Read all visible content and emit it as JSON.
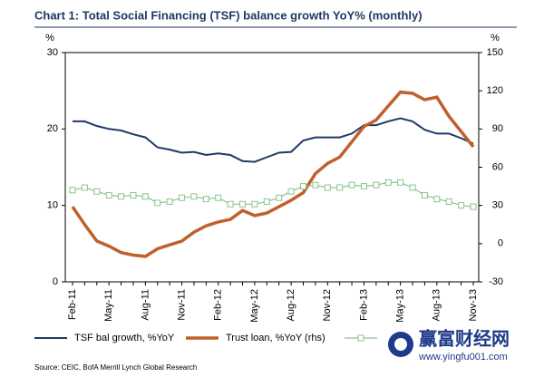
{
  "chart_data": {
    "type": "line",
    "title": "Chart 1: Total Social Financing (TSF) balance growth YoY% (monthly)",
    "y_label": "%",
    "y2_label": "%",
    "categories": [
      "Feb-11",
      null,
      null,
      "May-11",
      null,
      null,
      "Aug-11",
      null,
      null,
      "Nov-11",
      null,
      null,
      "Feb-12",
      null,
      null,
      "May-12",
      null,
      null,
      "Aug-12",
      null,
      null,
      "Nov-12",
      null,
      null,
      "Feb-13",
      null,
      null,
      "May-13",
      null,
      null,
      "Aug-13",
      null,
      null,
      "Nov-13"
    ],
    "ylim": [
      0,
      30
    ],
    "yticks": [
      0,
      10,
      20,
      30
    ],
    "y2lim": [
      -30,
      150
    ],
    "y2ticks": [
      -30,
      0,
      30,
      60,
      90,
      120,
      150
    ],
    "series": [
      {
        "name": "TSF bal growth, %YoY",
        "color": "#1f3a66",
        "marker": "none",
        "values": [
          21.0,
          21.0,
          20.4,
          20.0,
          19.8,
          19.3,
          18.9,
          17.6,
          17.3,
          16.9,
          17.0,
          16.6,
          16.8,
          16.6,
          15.8,
          15.7,
          16.3,
          16.9,
          17.0,
          18.5,
          18.9,
          18.9,
          18.9,
          19.4,
          20.5,
          20.5,
          21.0,
          21.4,
          21.0,
          19.9,
          19.4,
          19.4,
          18.8,
          18.1
        ]
      },
      {
        "name": "Trust loan, %YoY (rhs)",
        "color": "#c0602c",
        "axis": "y2",
        "marker": "none",
        "values": [
          29,
          15,
          2,
          -2,
          -7,
          -9,
          -10,
          -4,
          -1,
          2,
          9,
          14,
          17,
          19,
          26,
          22,
          24,
          29,
          34,
          40,
          55,
          63,
          68,
          80,
          92,
          97,
          108,
          119,
          118,
          113,
          115,
          100,
          88,
          76
        ]
      },
      {
        "color": "#8cc48c",
        "axis": "y2",
        "marker": "square",
        "values": [
          42,
          44,
          41,
          38,
          37,
          38,
          37,
          32,
          33,
          36,
          37,
          35,
          36,
          31,
          31,
          31,
          33,
          36,
          41,
          45,
          46,
          44,
          44,
          46,
          45,
          46,
          48,
          48,
          44,
          38,
          35,
          33,
          30,
          29
        ]
      }
    ],
    "source": "Source: CEIC, BofA Merrill Lynch Global Research",
    "watermark": "赢富财经网",
    "watermark_url": "www.yingfu001.com"
  }
}
